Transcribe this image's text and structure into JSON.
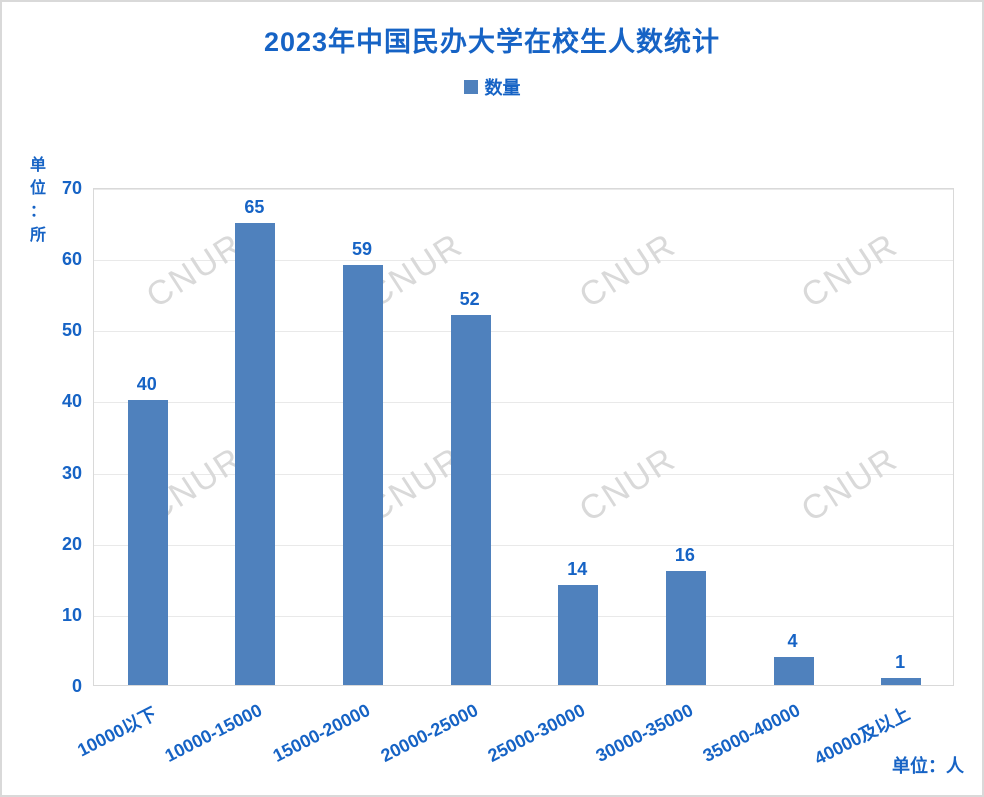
{
  "title": "2023年中国民办大学在校生人数统计",
  "legend": {
    "label": "数量"
  },
  "y_axis_unit": "单位：所",
  "x_axis_unit": "单位：人",
  "watermark_text": "CNUR",
  "colors": {
    "accent_blue": "#1663c5",
    "bar_fill": "#4f81bd",
    "gridline": "#e9e9e9",
    "plot_border": "#d9d9d9",
    "watermark": "#d9d9d9"
  },
  "chart_data": {
    "type": "bar",
    "title": "2023年中国民办大学在校生人数统计",
    "categories": [
      "10000以下",
      "10000-15000",
      "15000-20000",
      "20000-25000",
      "25000-30000",
      "30000-35000",
      "35000-40000",
      "40000及以上"
    ],
    "series": [
      {
        "name": "数量",
        "values": [
          40,
          65,
          59,
          52,
          14,
          16,
          4,
          1
        ]
      }
    ],
    "ylabel": "单位：所",
    "xlabel": "单位：人",
    "ylim": [
      0,
      70
    ],
    "ytick_step": 10,
    "grid": true,
    "legend_position": "top",
    "data_labels": true,
    "xtick_rotation_deg": -27
  }
}
